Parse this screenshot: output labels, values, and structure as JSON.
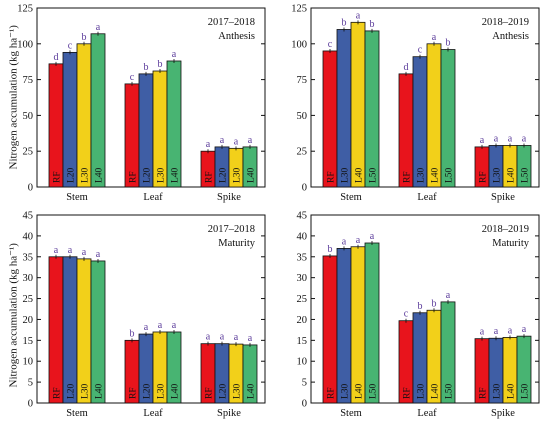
{
  "figure": {
    "y_axis_label": "Nitrogen accumulation (kg ha⁻¹)"
  },
  "colors": {
    "series": [
      "#e8141c",
      "#3f5ea5",
      "#f2d01a",
      "#48b472"
    ],
    "axis": "#111111",
    "letter": "#5a3a9a"
  },
  "chart_data": [
    {
      "type": "bar",
      "panel": "top-left",
      "season": "2017–2018",
      "stage": "Anthesis",
      "ylim": [
        0,
        125
      ],
      "yticks": [
        0,
        25,
        50,
        75,
        100,
        125
      ],
      "groups": [
        {
          "name": "Stem",
          "categories": [
            "RF",
            "L20",
            "L30",
            "L40"
          ],
          "values": [
            86,
            94,
            100,
            107
          ],
          "letters": [
            "d",
            "c",
            "b",
            "a"
          ]
        },
        {
          "name": "Leaf",
          "categories": [
            "RF",
            "L20",
            "L30",
            "L40"
          ],
          "values": [
            72,
            79,
            81,
            88
          ],
          "letters": [
            "c",
            "b",
            "b",
            "a"
          ]
        },
        {
          "name": "Spike",
          "categories": [
            "RF",
            "L20",
            "L30",
            "L40"
          ],
          "values": [
            25,
            28,
            27,
            28
          ],
          "letters": [
            "a",
            "a",
            "a",
            "a"
          ]
        }
      ]
    },
    {
      "type": "bar",
      "panel": "top-right",
      "season": "2018–2019",
      "stage": "Anthesis",
      "ylim": [
        0,
        125
      ],
      "yticks": [
        0,
        25,
        50,
        75,
        100,
        125
      ],
      "groups": [
        {
          "name": "Stem",
          "categories": [
            "RF",
            "L30",
            "L40",
            "L50"
          ],
          "values": [
            95,
            110,
            115,
            109
          ],
          "letters": [
            "c",
            "b",
            "a",
            "b"
          ]
        },
        {
          "name": "Leaf",
          "categories": [
            "RF",
            "L30",
            "L40",
            "L50"
          ],
          "values": [
            79,
            91,
            100,
            96
          ],
          "letters": [
            "d",
            "c",
            "a",
            "b"
          ]
        },
        {
          "name": "Spike",
          "categories": [
            "RF",
            "L30",
            "L40",
            "L50"
          ],
          "values": [
            28,
            29,
            29,
            29
          ],
          "letters": [
            "a",
            "a",
            "a",
            "a"
          ]
        }
      ]
    },
    {
      "type": "bar",
      "panel": "bottom-left",
      "season": "2017–2018",
      "stage": "Maturity",
      "ylim": [
        0,
        45
      ],
      "yticks": [
        0,
        5,
        10,
        15,
        20,
        25,
        30,
        35,
        40,
        45
      ],
      "groups": [
        {
          "name": "Stem",
          "categories": [
            "RF",
            "L20",
            "L30",
            "L40"
          ],
          "values": [
            35,
            35,
            34.5,
            34
          ],
          "letters": [
            "a",
            "a",
            "a",
            "a"
          ]
        },
        {
          "name": "Leaf",
          "categories": [
            "RF",
            "L20",
            "L30",
            "L40"
          ],
          "values": [
            15,
            16.5,
            17,
            17
          ],
          "letters": [
            "b",
            "a",
            "a",
            "a"
          ]
        },
        {
          "name": "Spike",
          "categories": [
            "RF",
            "L20",
            "L30",
            "L40"
          ],
          "values": [
            14.2,
            14.2,
            14.1,
            13.9
          ],
          "letters": [
            "a",
            "a",
            "a",
            "a"
          ]
        }
      ]
    },
    {
      "type": "bar",
      "panel": "bottom-right",
      "season": "2018–2019",
      "stage": "Maturity",
      "ylim": [
        0,
        45
      ],
      "yticks": [
        0,
        5,
        10,
        15,
        20,
        25,
        30,
        35,
        40,
        45
      ],
      "groups": [
        {
          "name": "Stem",
          "categories": [
            "RF",
            "L30",
            "L40",
            "L50"
          ],
          "values": [
            35.2,
            37,
            37.4,
            38.3
          ],
          "letters": [
            "b",
            "a",
            "a",
            "a"
          ]
        },
        {
          "name": "Leaf",
          "categories": [
            "RF",
            "L30",
            "L40",
            "L50"
          ],
          "values": [
            19.7,
            21.6,
            22.2,
            24.2
          ],
          "letters": [
            "c",
            "b",
            "b",
            "a"
          ]
        },
        {
          "name": "Spike",
          "categories": [
            "RF",
            "L30",
            "L40",
            "L50"
          ],
          "values": [
            15.4,
            15.5,
            15.7,
            16.0
          ],
          "letters": [
            "a",
            "a",
            "a",
            "a"
          ]
        }
      ]
    }
  ]
}
